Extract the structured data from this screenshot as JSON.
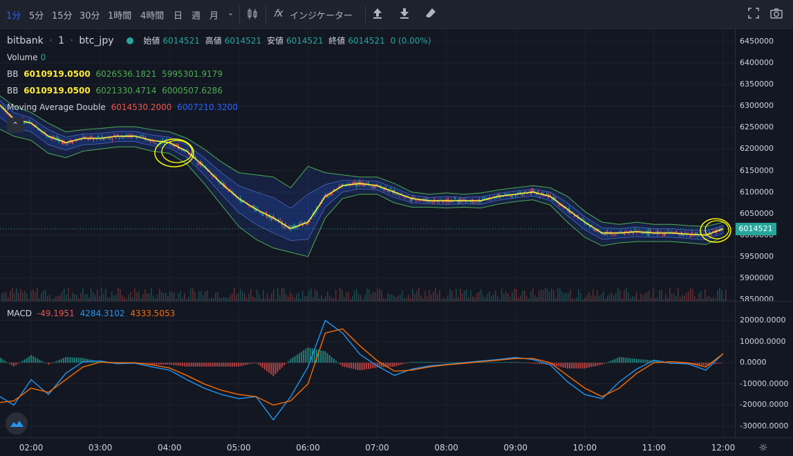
{
  "toolbar": {
    "timeframes": [
      "1分",
      "5分",
      "15分",
      "30分",
      "1時間",
      "4時間",
      "日",
      "週",
      "月"
    ],
    "active_timeframe": "1分",
    "indicators_label": "インジケーター",
    "icons": [
      "chevron-down-icon",
      "candle-style-icon",
      "fx-icon",
      "upload-icon",
      "download-icon",
      "eraser-icon",
      "fullscreen-icon",
      "camera-icon"
    ]
  },
  "legend": {
    "exchange": "bitbank",
    "interval": "1",
    "symbol": "btc_jpy",
    "open_label": "始値",
    "open_value": "6014521",
    "high_label": "高値",
    "high_value": "6014521",
    "low_label": "安値",
    "low_value": "6014521",
    "close_label": "終値",
    "close_value": "6014521",
    "change": "0 (0.00%)",
    "volume_label": "Volume",
    "volume_value": "0",
    "bb1_label": "BB",
    "bb1_values": [
      "6010919.0500",
      "6026536.1821",
      "5995301.9179"
    ],
    "bb2_label": "BB",
    "bb2_values": [
      "6010919.0500",
      "6021330.4714",
      "6000507.6286"
    ],
    "ma_label": "Moving Average Double",
    "ma_values": [
      "6014530.2000",
      "6007210.3200"
    ]
  },
  "macd_legend": {
    "label": "MACD",
    "values": [
      "-49.1951",
      "4284.3102",
      "4333.5053"
    ]
  },
  "price_axis": [
    "6450000",
    "6400000",
    "6350000",
    "6300000",
    "6250000",
    "6200000",
    "6150000",
    "6100000",
    "6050000",
    "6000000",
    "5950000",
    "5900000",
    "5850000"
  ],
  "current_price": "6014521",
  "macd_axis": [
    "20000.0000",
    "10000.0000",
    "0.0000",
    "-10000.0000",
    "-20000.0000",
    "-30000.0000"
  ],
  "time_axis": [
    "02:00",
    "03:00",
    "04:00",
    "05:00",
    "06:00",
    "07:00",
    "08:00",
    "09:00",
    "10:00",
    "11:00",
    "12:00"
  ],
  "colors": {
    "bg": "#131722",
    "up": "#26a69a",
    "down": "#ef5350",
    "bb_outer": "#4caf50",
    "bb_mid": "#ffeb3b",
    "ma_blue": "#2962ff",
    "macd": "#2196f3",
    "signal": "#ff6d00",
    "annotation": "#ffff00"
  },
  "chart_data": [
    {
      "type": "line",
      "title": "bitbank · 1 · btc_jpy",
      "x": [
        "01:30",
        "01:45",
        "02:00",
        "02:15",
        "02:30",
        "02:45",
        "03:00",
        "03:15",
        "03:30",
        "03:45",
        "04:00",
        "04:15",
        "04:30",
        "04:45",
        "05:00",
        "05:15",
        "05:30",
        "05:45",
        "06:00",
        "06:15",
        "06:30",
        "06:45",
        "07:00",
        "07:15",
        "07:30",
        "07:45",
        "08:00",
        "08:15",
        "08:30",
        "08:45",
        "09:00",
        "09:15",
        "09:30",
        "09:45",
        "10:00",
        "10:15",
        "10:30",
        "10:45",
        "11:00",
        "11:15",
        "11:30",
        "11:45",
        "12:00"
      ],
      "series": [
        {
          "name": "Close",
          "values": [
            6310000,
            6270000,
            6260000,
            6230000,
            6215000,
            6225000,
            6225000,
            6230000,
            6230000,
            6220000,
            6215000,
            6195000,
            6160000,
            6120000,
            6085000,
            6060000,
            6040000,
            6015000,
            6030000,
            6090000,
            6115000,
            6120000,
            6115000,
            6100000,
            6085000,
            6080000,
            6080000,
            6080000,
            6080000,
            6090000,
            6095000,
            6100000,
            6090000,
            6060000,
            6030000,
            6005000,
            6005000,
            6008000,
            6005000,
            6005000,
            6002000,
            6000000,
            6014521
          ]
        },
        {
          "name": "BB Upper",
          "values": [
            6330000,
            6300000,
            6285000,
            6260000,
            6240000,
            6245000,
            6248000,
            6252000,
            6252000,
            6245000,
            6240000,
            6225000,
            6200000,
            6170000,
            6145000,
            6140000,
            6135000,
            6110000,
            6160000,
            6145000,
            6140000,
            6135000,
            6135000,
            6120000,
            6100000,
            6095000,
            6098000,
            6095000,
            6098000,
            6105000,
            6110000,
            6115000,
            6110000,
            6090000,
            6055000,
            6030000,
            6025000,
            6030000,
            6025000,
            6025000,
            6022000,
            6020000,
            6030000
          ]
        },
        {
          "name": "BB Lower",
          "values": [
            6250000,
            6230000,
            6220000,
            6190000,
            6180000,
            6195000,
            6200000,
            6205000,
            6205000,
            6195000,
            6190000,
            6165000,
            6120000,
            6070000,
            6020000,
            5990000,
            5970000,
            5960000,
            5950000,
            6040000,
            6085000,
            6095000,
            6095000,
            6075000,
            6065000,
            6065000,
            6063000,
            6065000,
            6063000,
            6072000,
            6078000,
            6082000,
            6070000,
            6030000,
            5995000,
            5975000,
            5982000,
            5985000,
            5985000,
            5985000,
            5982000,
            5978000,
            5995000
          ]
        }
      ],
      "ylim": [
        5850000,
        6450000
      ]
    },
    {
      "type": "line",
      "title": "MACD",
      "x": [
        "01:30",
        "01:45",
        "02:00",
        "02:15",
        "02:30",
        "02:45",
        "03:00",
        "03:15",
        "03:30",
        "03:45",
        "04:00",
        "04:15",
        "04:30",
        "04:45",
        "05:00",
        "05:15",
        "05:30",
        "05:45",
        "06:00",
        "06:15",
        "06:30",
        "06:45",
        "07:00",
        "07:15",
        "07:30",
        "07:45",
        "08:00",
        "08:15",
        "08:30",
        "08:45",
        "09:00",
        "09:15",
        "09:30",
        "09:45",
        "10:00",
        "10:15",
        "10:30",
        "10:45",
        "11:00",
        "11:15",
        "11:30",
        "11:45",
        "12:00"
      ],
      "series": [
        {
          "name": "MACD",
          "values": [
            -15000,
            -20000,
            -8000,
            -15000,
            -5000,
            500,
            800,
            -500,
            -200,
            -2000,
            -3500,
            -8000,
            -12000,
            -15000,
            -17000,
            -16000,
            -27000,
            -16000,
            -2000,
            20000,
            14000,
            4000,
            -1500,
            -6000,
            -3000,
            -1500,
            -800,
            0,
            800,
            1500,
            2500,
            1500,
            -1000,
            -9000,
            -15000,
            -17000,
            -9000,
            -3000,
            1200,
            -200,
            -600,
            -3500,
            4300
          ]
        },
        {
          "name": "Signal",
          "values": [
            -19000,
            -18000,
            -12000,
            -14000,
            -8000,
            -2000,
            300,
            0,
            0,
            -1000,
            -2500,
            -6000,
            -10000,
            -13000,
            -15000,
            -16000,
            -20000,
            -18000,
            -10000,
            14000,
            16000,
            8000,
            1000,
            -4000,
            -3500,
            -2000,
            -1000,
            -300,
            500,
            1200,
            2000,
            2000,
            0,
            -6000,
            -12000,
            -16000,
            -12000,
            -5000,
            0,
            500,
            -100,
            -2000,
            4300
          ]
        }
      ],
      "ylim": [
        -35000,
        25000
      ]
    }
  ]
}
